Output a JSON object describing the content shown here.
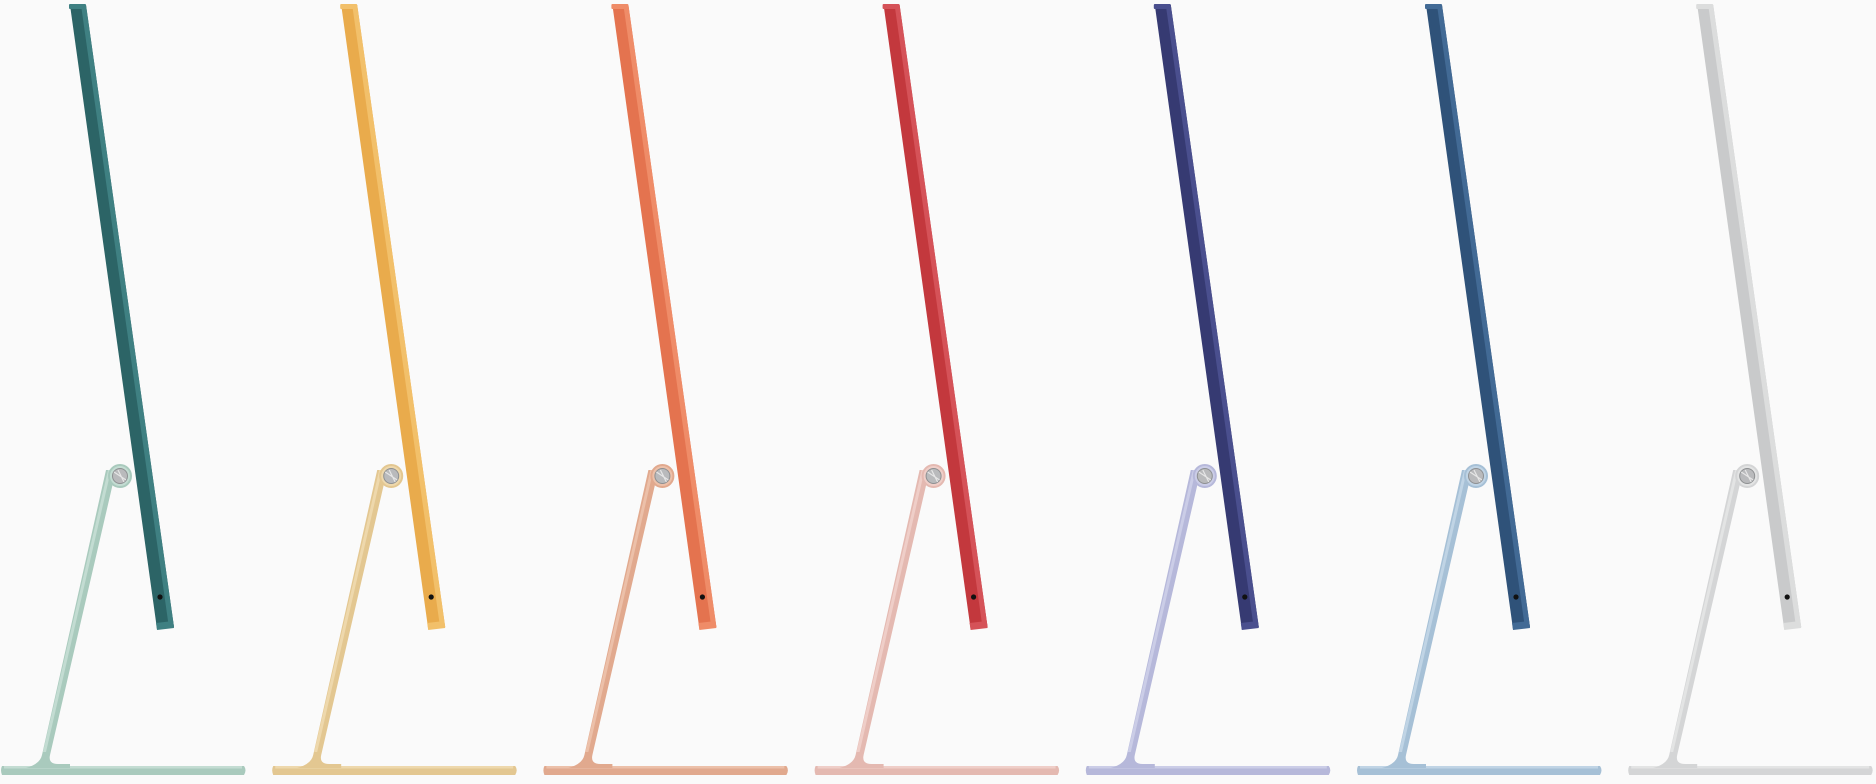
{
  "product_lineup": {
    "items": [
      {
        "color_name": "green",
        "display": "#2c6466",
        "display_hi": "#3f8082",
        "stand": "#a9cabd",
        "stand_hi": "#c3dcd2"
      },
      {
        "color_name": "yellow",
        "display": "#e9ab4c",
        "display_hi": "#f2c06a",
        "stand": "#e3c791",
        "stand_hi": "#eed8ac"
      },
      {
        "color_name": "orange",
        "display": "#e4734f",
        "display_hi": "#ef8c68",
        "stand": "#e1a98e",
        "stand_hi": "#ecc0a9"
      },
      {
        "color_name": "pink",
        "display": "#c3383d",
        "display_hi": "#d55258",
        "stand": "#e4b9b1",
        "stand_hi": "#efcec8"
      },
      {
        "color_name": "purple",
        "display": "#363a72",
        "display_hi": "#4a4f8e",
        "stand": "#b6b8da",
        "stand_hi": "#cbcde7"
      },
      {
        "color_name": "blue",
        "display": "#2f5279",
        "display_hi": "#426a95",
        "stand": "#a6c0d6",
        "stand_hi": "#c0d4e5"
      },
      {
        "color_name": "silver",
        "display": "#c9cacb",
        "display_hi": "#dcdddd",
        "stand": "#d4d5d6",
        "stand_hi": "#e3e4e4"
      }
    ]
  }
}
